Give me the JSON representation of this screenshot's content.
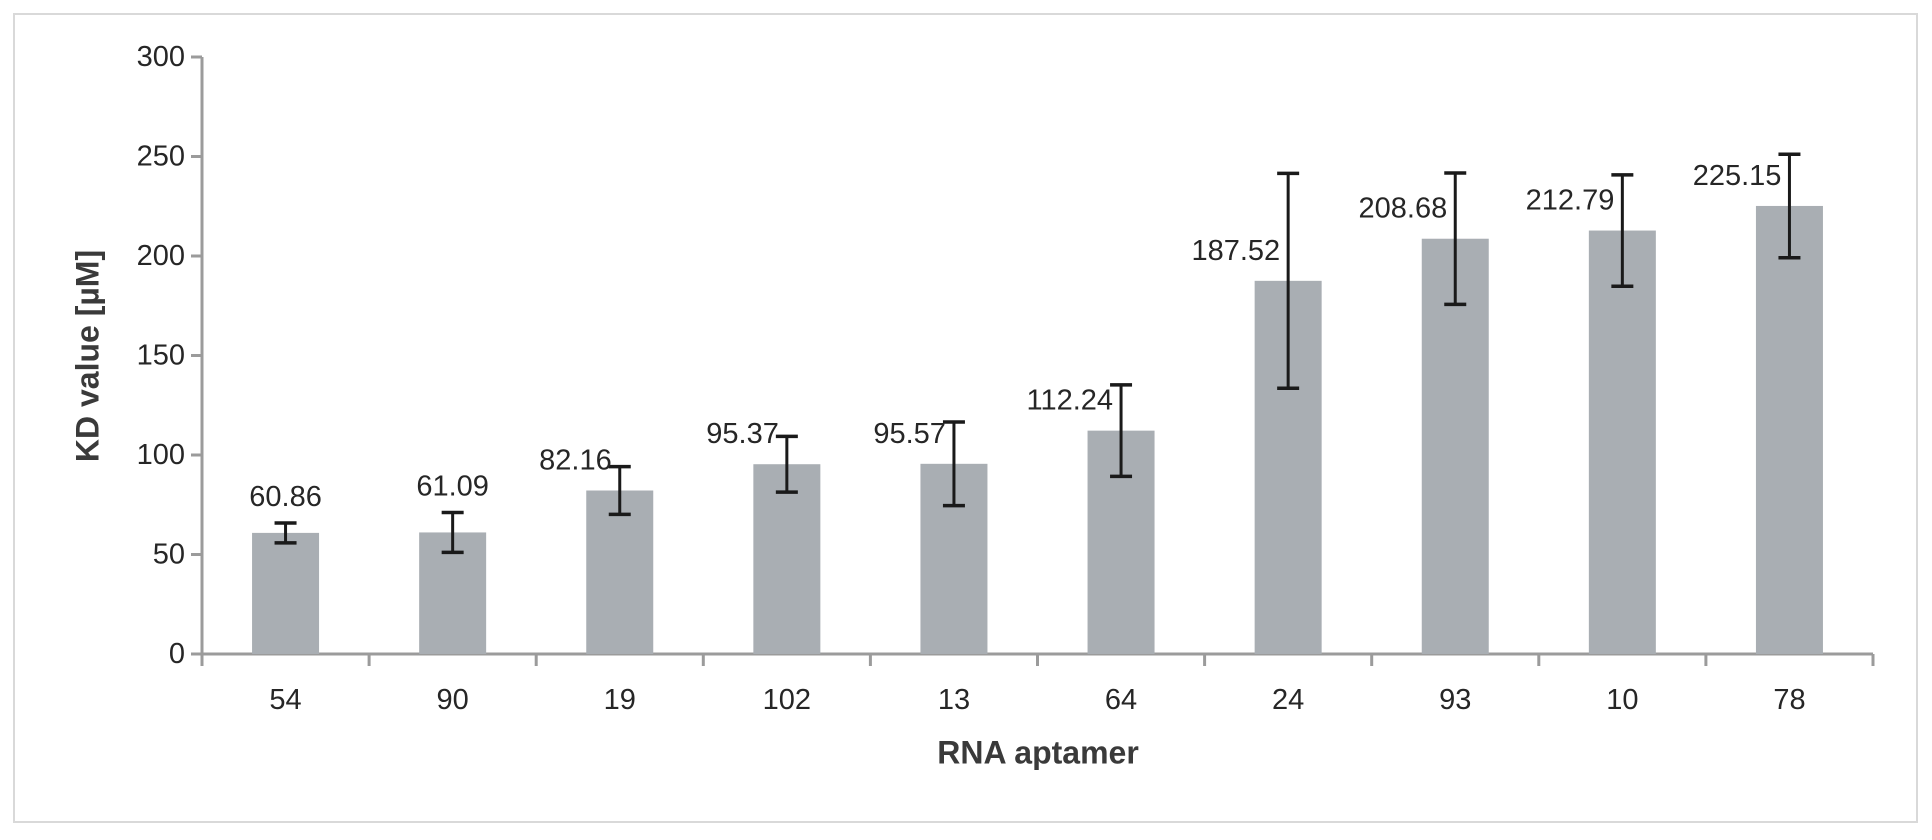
{
  "chart_data": {
    "type": "bar",
    "title": "",
    "xlabel": "RNA aptamer",
    "ylabel": "KD value [µM]",
    "categories": [
      "54",
      "90",
      "19",
      "102",
      "13",
      "64",
      "24",
      "93",
      "10",
      "78"
    ],
    "values": [
      60.86,
      61.09,
      82.16,
      95.37,
      95.57,
      112.24,
      187.52,
      208.68,
      212.79,
      225.15
    ],
    "data_labels": [
      "60.86",
      "61.09",
      "82.16",
      "95.37",
      "95.57",
      "112.24",
      "187.52",
      "208.68",
      "212.79",
      "225.15"
    ],
    "error_bars": [
      5,
      10,
      12,
      14,
      21,
      23,
      54,
      33,
      28,
      26
    ],
    "ylim": [
      0,
      300
    ],
    "ytick_interval": 50,
    "ytick_labels": [
      "0",
      "50",
      "100",
      "150",
      "200",
      "250",
      "300"
    ],
    "grid": false,
    "legend": "none",
    "colors": {
      "bar_fill": "#a9aeb3",
      "axis_line": "#9b9b9b",
      "error_bar": "#1a1a1a",
      "tick_label": "#262626",
      "data_label": "#262626",
      "axis_title": "#3a3a3a",
      "frame_border": "#d9d9d9",
      "background": "#ffffff"
    }
  }
}
